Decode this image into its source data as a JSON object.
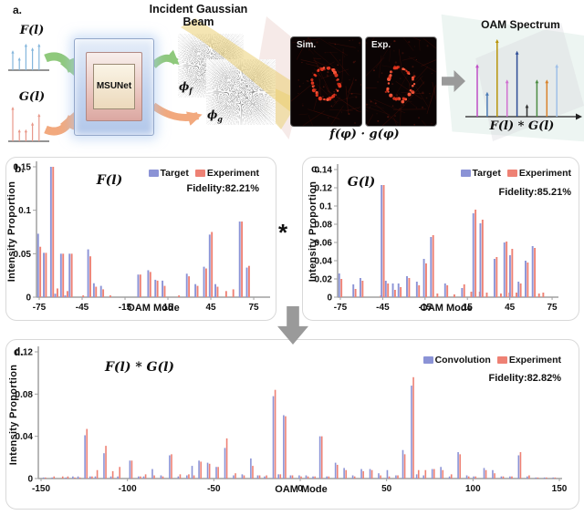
{
  "page": {
    "background": "#ffffff"
  },
  "panel_a": {
    "label": "a.",
    "f_input": {
      "label": "F(l)",
      "color": "#84b6dc",
      "heights": [
        0.73,
        0.47,
        0.97,
        0.83,
        0.97
      ]
    },
    "g_input": {
      "label": "G(l)",
      "color": "#e8988a",
      "heights": [
        1.0,
        0.35,
        0.35,
        0.55,
        0.8
      ]
    },
    "msunet_label": "MSUNet",
    "incident_title": "Incident Gaussian Beam",
    "phi": "ϕ",
    "phi_f_sub": "f",
    "phi_g_sub": "g",
    "sim_label": "Sim.",
    "exp_label": "Exp.",
    "product_label": "f(φ) · g(φ)",
    "oam_spectrum": {
      "title": "OAM Spectrum",
      "axis_label": "F(l) * G(l)",
      "stems": [
        {
          "color": "#bf4fc6",
          "h": 0.68
        },
        {
          "color": "#4a7ab5",
          "h": 0.32
        },
        {
          "color": "#b8940a",
          "h": 1.0
        },
        {
          "color": "#d070d0",
          "h": 0.48
        },
        {
          "color": "#2e4d96",
          "h": 0.85
        },
        {
          "color": "#303030",
          "h": 0.16
        },
        {
          "color": "#4c8c44",
          "h": 0.48
        },
        {
          "color": "#d9822b",
          "h": 0.48
        },
        {
          "color": "#9fc0e8",
          "h": 0.68
        }
      ]
    }
  },
  "operators": {
    "convolution_asterisk": "*"
  },
  "chart_data": [
    {
      "id": "b",
      "type": "bar",
      "panel_label": "b.",
      "title": "F(l)",
      "xlabel": "OAM Mode",
      "ylabel": "Intensity Proportion",
      "legend": [
        "Target",
        "Experiment"
      ],
      "legend_position": "top-right",
      "fidelity": "Fidelity:82.21%",
      "series_colors": [
        "#8b93d6",
        "#ee8174"
      ],
      "xlim": [
        -80,
        80
      ],
      "ylim": [
        0,
        0.15
      ],
      "xticks": [
        -75,
        -45,
        -15,
        15,
        45,
        75
      ],
      "yticks": [
        0,
        0.05,
        0.1,
        0.15
      ],
      "x": [
        -75,
        -71,
        -66,
        -63,
        -59,
        -56,
        -53,
        -45,
        -40,
        -36,
        -31,
        -26,
        -5,
        2,
        7,
        12,
        22,
        29,
        35,
        41,
        45,
        49,
        55,
        60,
        66,
        71
      ],
      "series": [
        {
          "name": "Target",
          "values": [
            0.073,
            0.051,
            0.15,
            0.004,
            0.05,
            0.002,
            0.05,
            0,
            0.055,
            0.016,
            0.013,
            0,
            0.026,
            0.031,
            0.02,
            0.019,
            0,
            0.027,
            0.015,
            0.035,
            0.072,
            0.015,
            0,
            0,
            0.087,
            0.034
          ]
        },
        {
          "name": "Experiment",
          "values": [
            0.058,
            0.051,
            0.15,
            0.01,
            0.05,
            0.007,
            0.05,
            0.002,
            0.047,
            0.012,
            0.009,
            0.002,
            0.026,
            0.029,
            0.019,
            0.013,
            0.002,
            0.024,
            0.013,
            0.033,
            0.075,
            0.012,
            0.007,
            0.009,
            0.087,
            0.036
          ]
        }
      ]
    },
    {
      "id": "c",
      "type": "bar",
      "panel_label": "c.",
      "title": "G(l)",
      "xlabel": "OAM Mode",
      "ylabel": "Intensity Proportion",
      "legend": [
        "Target",
        "Experiment"
      ],
      "legend_position": "top-right",
      "fidelity": "Fidelity:85.21%",
      "series_colors": [
        "#8b93d6",
        "#ee8174"
      ],
      "xlim": [
        -80,
        80
      ],
      "ylim": [
        0,
        0.14
      ],
      "xticks": [
        -75,
        -45,
        -15,
        15,
        45,
        75
      ],
      "yticks": [
        0,
        0.02,
        0.04,
        0.06,
        0.08,
        0.1,
        0.12,
        0.14
      ],
      "x": [
        -75,
        -65,
        -60,
        -47,
        -45,
        -42,
        -37,
        -33,
        -27,
        -20,
        -15,
        -10,
        -7,
        0,
        5,
        12,
        17,
        20,
        23,
        25,
        28,
        35,
        38,
        42,
        44,
        46,
        49,
        52,
        57,
        62,
        65,
        68
      ],
      "series": [
        {
          "name": "Target",
          "values": [
            0.026,
            0.014,
            0.021,
            0,
            0.123,
            0.018,
            0.015,
            0.015,
            0.023,
            0.017,
            0.042,
            0.066,
            0,
            0.015,
            0,
            0.01,
            0,
            0.092,
            0,
            0.081,
            0,
            0.042,
            0,
            0.06,
            0,
            0.046,
            0,
            0.017,
            0.04,
            0.056,
            0,
            0
          ]
        },
        {
          "name": "Experiment",
          "values": [
            0.02,
            0.009,
            0.018,
            0.002,
            0.123,
            0.015,
            0.008,
            0.011,
            0.021,
            0.013,
            0.037,
            0.068,
            0.004,
            0.013,
            0.003,
            0.014,
            0.006,
            0.096,
            0.006,
            0.085,
            0.005,
            0.044,
            0.004,
            0.061,
            0.005,
            0.053,
            0.005,
            0.015,
            0.038,
            0.054,
            0.004,
            0.005
          ]
        }
      ]
    },
    {
      "id": "d",
      "type": "bar",
      "panel_label": "d.",
      "title": "F(l) * G(l)",
      "xlabel": "OAM Mode",
      "ylabel": "Intensity Proportion",
      "legend": [
        "Convolution",
        "Experiment"
      ],
      "legend_position": "top-right",
      "fidelity": "Fidelity:82.82%",
      "series_colors": [
        "#8b93d6",
        "#ee8174"
      ],
      "xlim": [
        -155,
        155
      ],
      "ylim": [
        0,
        0.12
      ],
      "xticks": [
        -150,
        -100,
        -50,
        0,
        50,
        100,
        150
      ],
      "yticks": [
        0,
        0.04,
        0.08,
        0.12
      ],
      "x": [
        -148,
        -143,
        -138,
        -135,
        -131,
        -128,
        -124,
        -121,
        -118,
        -113,
        -109,
        -105,
        -98,
        -93,
        -90,
        -85,
        -80,
        -75,
        -70,
        -65,
        -62,
        -58,
        -53,
        -48,
        -43,
        -38,
        -33,
        -28,
        -24,
        -20,
        -15,
        -12,
        -9,
        -5,
        0,
        4,
        8,
        12,
        16,
        21,
        26,
        31,
        36,
        41,
        46,
        51,
        56,
        60,
        65,
        68,
        72,
        77,
        82,
        87,
        92,
        97,
        101,
        107,
        112,
        117,
        122,
        127,
        132,
        137,
        142,
        147
      ],
      "series": [
        {
          "name": "Convolution",
          "values": [
            0.001,
            0.001,
            0,
            0.001,
            0.002,
            0.002,
            0.041,
            0.002,
            0.002,
            0.024,
            0.002,
            0.002,
            0.017,
            0.002,
            0.002,
            0.009,
            0.003,
            0.022,
            0.002,
            0.003,
            0.012,
            0.017,
            0.015,
            0.011,
            0.029,
            0.003,
            0.004,
            0.019,
            0.003,
            0.002,
            0.078,
            0.004,
            0.06,
            0.003,
            0.003,
            0.003,
            0.002,
            0.04,
            0.002,
            0.015,
            0.01,
            0.003,
            0.009,
            0.009,
            0.005,
            0.008,
            0.003,
            0.027,
            0.088,
            0.004,
            0.003,
            0.009,
            0.011,
            0.002,
            0.025,
            0.003,
            0.002,
            0.01,
            0.008,
            0.002,
            0.002,
            0.022,
            0.002,
            0.001,
            0.001,
            0.001
          ]
        },
        {
          "name": "Experiment",
          "values": [
            0.001,
            0.002,
            0.002,
            0.002,
            0.001,
            0.001,
            0.047,
            0.002,
            0.008,
            0.031,
            0.007,
            0.011,
            0.017,
            0.002,
            0.004,
            0.003,
            0.002,
            0.023,
            0.004,
            0.004,
            0.003,
            0.016,
            0.014,
            0.011,
            0.038,
            0.005,
            0.003,
            0.012,
            0.003,
            0.003,
            0.084,
            0.004,
            0.059,
            0.003,
            0.002,
            0.002,
            0.002,
            0.04,
            0.002,
            0.013,
            0.008,
            0.002,
            0.007,
            0.008,
            0.003,
            0.002,
            0.003,
            0.023,
            0.096,
            0.008,
            0.008,
            0.009,
            0.008,
            0.004,
            0.023,
            0.002,
            0.002,
            0.008,
            0.005,
            0.002,
            0.002,
            0.025,
            0.003,
            0.001,
            0.001,
            0.001
          ]
        }
      ]
    }
  ]
}
